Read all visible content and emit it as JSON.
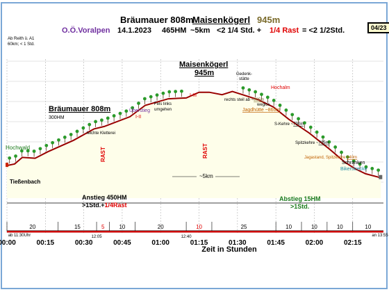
{
  "header": {
    "title_part1": "Bräumauer 808m",
    "title_part2": "Maisenkögerl",
    "title_part3": "945m",
    "region": "O.Ö.Voralpen",
    "date": "14.1.2023",
    "hm": "465HM",
    "distance": "~5km",
    "time": "<2 1/4 Std. +",
    "rast": "1/4 Rast",
    "total": "= <2 1/2Std.",
    "badge": "04/23"
  },
  "notes": {
    "start_note_1": "Ab Reith ü. A1",
    "start_note_2": "60km; < 1 Std.",
    "start_time": "ab 11:30Uhr",
    "end_time": "an 13:55"
  },
  "chart_data": {
    "type": "area",
    "xlabel": "Zeit in Stunden",
    "x_ticks": [
      "00:00",
      "00:15",
      "00:30",
      "00:45",
      "01:00",
      "01:15",
      "01:30",
      "01:45",
      "02:00",
      "02:15"
    ],
    "x_tick_minutes": [
      0,
      15,
      30,
      45,
      60,
      75,
      90,
      105,
      120,
      135
    ],
    "x_range_minutes": [
      0,
      147
    ],
    "x": [
      0,
      3,
      6,
      11,
      16,
      26,
      34,
      38,
      48,
      54,
      63,
      70,
      75,
      79,
      84,
      88,
      94,
      98,
      104,
      110,
      118,
      126,
      132,
      136,
      140,
      146
    ],
    "y": [
      40,
      42,
      50,
      49,
      57,
      71,
      85,
      88,
      100,
      114,
      122,
      123,
      130,
      130,
      127,
      131,
      125,
      121,
      112,
      97,
      80,
      60,
      44,
      36,
      30,
      25
    ],
    "y_range": [
      0,
      175
    ],
    "line_color": "#990000",
    "fill_color": "#fefeea",
    "segment_minutes": [
      "20",
      "15",
      "5",
      "10",
      "20",
      "10",
      "25",
      "10",
      "10",
      "10",
      "10"
    ],
    "segment_bounds": [
      0,
      20,
      35,
      40,
      50,
      70,
      80,
      105,
      115,
      125,
      135,
      147
    ],
    "time_marks": [
      {
        "label": "12:05",
        "minute": 35
      },
      {
        "label": "12:40",
        "minute": 70
      }
    ],
    "annotations": {
      "peak1_title": "Bräumauer 808m",
      "peak1_hm": "300HM",
      "peak2_title": "Maisenkögerl",
      "peak2_alt": "945m",
      "hochwald": "Hochwald",
      "tiessenbach": "Tießenbach",
      "kletterei": "leichte Kletterei",
      "rast1": "RAST",
      "rast2": "RAST",
      "ueberstieg": "Überstieg",
      "ueberstieg_num": "I-II",
      "fels": "Fels links",
      "umgehen": "umgehen",
      "grade": "I-III",
      "km": "~5km",
      "gedenk": "Gedenk-",
      "staette": "stätte",
      "rechts_steil": "rechts steil ab ~",
      "rechts_steil_alt": "895m",
      "weglos": "weglos",
      "hochalm": "Hochalm",
      "jagdhuette": "Jagdhütte ~",
      "jagdhuette_alt": "860m",
      "skehre": "S-Kehre ~",
      "skehre_alt": "790m",
      "spitzkehre": "Spitzkehre ~",
      "spitzkehre_alt": "705m",
      "jagastand": "Jagastand, Spitzkehre ",
      "jagastand_alt": "640m",
      "schranken": "Schranken",
      "bikerstrecke": "Bikerstrecke",
      "anstieg1_title": "Anstieg 450HM",
      "anstieg1_time": ">1Std.+",
      "anstieg1_rast": "1/4Rast",
      "abstieg_title": "Abstieg 15HM",
      "abstieg_time": ">1Std."
    }
  }
}
